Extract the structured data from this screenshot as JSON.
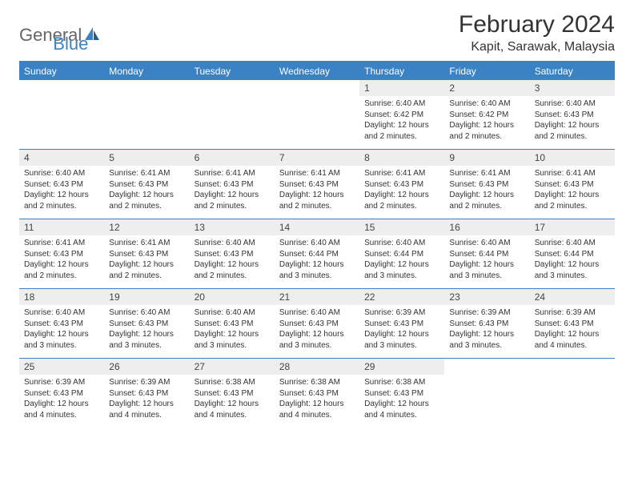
{
  "logo": {
    "general": "General",
    "blue": "Blue"
  },
  "title": "February 2024",
  "location": "Kapit, Sarawak, Malaysia",
  "colors": {
    "accent": "#3b82c4",
    "daynum_bg": "#eeeeee",
    "text": "#333333",
    "bg": "#ffffff"
  },
  "weekdays": [
    "Sunday",
    "Monday",
    "Tuesday",
    "Wednesday",
    "Thursday",
    "Friday",
    "Saturday"
  ],
  "layout": {
    "cols": 7,
    "rows": 5,
    "first_weekday_index": 4,
    "days_in_month": 29
  },
  "days": [
    {
      "n": 1,
      "sunrise": "6:40 AM",
      "sunset": "6:42 PM",
      "daylight": "12 hours and 2 minutes."
    },
    {
      "n": 2,
      "sunrise": "6:40 AM",
      "sunset": "6:42 PM",
      "daylight": "12 hours and 2 minutes."
    },
    {
      "n": 3,
      "sunrise": "6:40 AM",
      "sunset": "6:43 PM",
      "daylight": "12 hours and 2 minutes."
    },
    {
      "n": 4,
      "sunrise": "6:40 AM",
      "sunset": "6:43 PM",
      "daylight": "12 hours and 2 minutes."
    },
    {
      "n": 5,
      "sunrise": "6:41 AM",
      "sunset": "6:43 PM",
      "daylight": "12 hours and 2 minutes."
    },
    {
      "n": 6,
      "sunrise": "6:41 AM",
      "sunset": "6:43 PM",
      "daylight": "12 hours and 2 minutes."
    },
    {
      "n": 7,
      "sunrise": "6:41 AM",
      "sunset": "6:43 PM",
      "daylight": "12 hours and 2 minutes."
    },
    {
      "n": 8,
      "sunrise": "6:41 AM",
      "sunset": "6:43 PM",
      "daylight": "12 hours and 2 minutes."
    },
    {
      "n": 9,
      "sunrise": "6:41 AM",
      "sunset": "6:43 PM",
      "daylight": "12 hours and 2 minutes."
    },
    {
      "n": 10,
      "sunrise": "6:41 AM",
      "sunset": "6:43 PM",
      "daylight": "12 hours and 2 minutes."
    },
    {
      "n": 11,
      "sunrise": "6:41 AM",
      "sunset": "6:43 PM",
      "daylight": "12 hours and 2 minutes."
    },
    {
      "n": 12,
      "sunrise": "6:41 AM",
      "sunset": "6:43 PM",
      "daylight": "12 hours and 2 minutes."
    },
    {
      "n": 13,
      "sunrise": "6:40 AM",
      "sunset": "6:43 PM",
      "daylight": "12 hours and 2 minutes."
    },
    {
      "n": 14,
      "sunrise": "6:40 AM",
      "sunset": "6:44 PM",
      "daylight": "12 hours and 3 minutes."
    },
    {
      "n": 15,
      "sunrise": "6:40 AM",
      "sunset": "6:44 PM",
      "daylight": "12 hours and 3 minutes."
    },
    {
      "n": 16,
      "sunrise": "6:40 AM",
      "sunset": "6:44 PM",
      "daylight": "12 hours and 3 minutes."
    },
    {
      "n": 17,
      "sunrise": "6:40 AM",
      "sunset": "6:44 PM",
      "daylight": "12 hours and 3 minutes."
    },
    {
      "n": 18,
      "sunrise": "6:40 AM",
      "sunset": "6:43 PM",
      "daylight": "12 hours and 3 minutes."
    },
    {
      "n": 19,
      "sunrise": "6:40 AM",
      "sunset": "6:43 PM",
      "daylight": "12 hours and 3 minutes."
    },
    {
      "n": 20,
      "sunrise": "6:40 AM",
      "sunset": "6:43 PM",
      "daylight": "12 hours and 3 minutes."
    },
    {
      "n": 21,
      "sunrise": "6:40 AM",
      "sunset": "6:43 PM",
      "daylight": "12 hours and 3 minutes."
    },
    {
      "n": 22,
      "sunrise": "6:39 AM",
      "sunset": "6:43 PM",
      "daylight": "12 hours and 3 minutes."
    },
    {
      "n": 23,
      "sunrise": "6:39 AM",
      "sunset": "6:43 PM",
      "daylight": "12 hours and 3 minutes."
    },
    {
      "n": 24,
      "sunrise": "6:39 AM",
      "sunset": "6:43 PM",
      "daylight": "12 hours and 4 minutes."
    },
    {
      "n": 25,
      "sunrise": "6:39 AM",
      "sunset": "6:43 PM",
      "daylight": "12 hours and 4 minutes."
    },
    {
      "n": 26,
      "sunrise": "6:39 AM",
      "sunset": "6:43 PM",
      "daylight": "12 hours and 4 minutes."
    },
    {
      "n": 27,
      "sunrise": "6:38 AM",
      "sunset": "6:43 PM",
      "daylight": "12 hours and 4 minutes."
    },
    {
      "n": 28,
      "sunrise": "6:38 AM",
      "sunset": "6:43 PM",
      "daylight": "12 hours and 4 minutes."
    },
    {
      "n": 29,
      "sunrise": "6:38 AM",
      "sunset": "6:43 PM",
      "daylight": "12 hours and 4 minutes."
    }
  ],
  "labels": {
    "sunrise": "Sunrise:",
    "sunset": "Sunset:",
    "daylight": "Daylight:"
  }
}
